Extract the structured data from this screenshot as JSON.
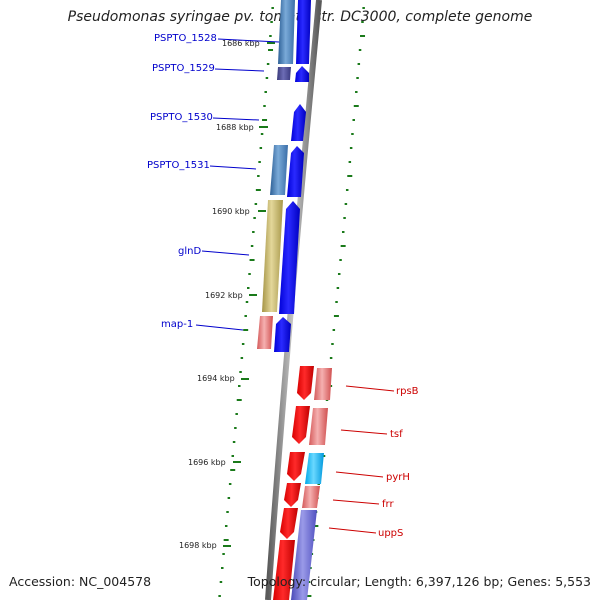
{
  "header": {
    "title": "Pseudomonas syringae pv. tomato str. DC3000, complete genome"
  },
  "footer": {
    "accession": "Accession: NC_004578",
    "stats": "Topology: circular; Length: 6,397,126 bp; Genes: 5,553"
  },
  "scale_labels": [
    "1686 kbp",
    "1688 kbp",
    "1690 kbp",
    "1692 kbp",
    "1694 kbp",
    "1696 kbp",
    "1698 kbp"
  ],
  "genes_forward": [
    {
      "name": "PSPTO_1528"
    },
    {
      "name": "PSPTO_1529"
    },
    {
      "name": "PSPTO_1530"
    },
    {
      "name": "PSPTO_1531"
    },
    {
      "name": "glnD"
    },
    {
      "name": "map-1"
    }
  ],
  "genes_reverse": [
    {
      "name": "rpsB"
    },
    {
      "name": "tsf"
    },
    {
      "name": "pyrH"
    },
    {
      "name": "frr"
    },
    {
      "name": "uppS"
    }
  ],
  "colors": {
    "forward_label": "#0000cc",
    "reverse_label": "#cc0000",
    "forward_gene": "#0000ff",
    "reverse_gene": "#ff0000",
    "backbone": "#808080",
    "gc_ticks": "#1a7a1a"
  }
}
